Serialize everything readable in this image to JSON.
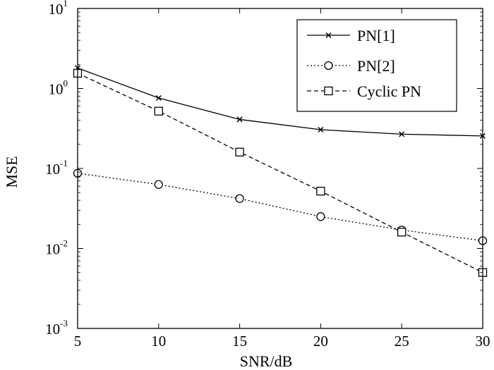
{
  "chart_data": {
    "type": "line",
    "x": [
      5,
      10,
      15,
      20,
      25,
      30
    ],
    "xlim": [
      5,
      30
    ],
    "ylim": [
      0.001,
      10
    ],
    "yscale": "log",
    "xlabel": "SNR/dB",
    "ylabel": "MSE",
    "xticks": [
      {
        "value": 5,
        "label": "5"
      },
      {
        "value": 10,
        "label": "10"
      },
      {
        "value": 15,
        "label": "15"
      },
      {
        "value": 20,
        "label": "20"
      },
      {
        "value": 25,
        "label": "25"
      },
      {
        "value": 30,
        "label": "30"
      }
    ],
    "yticks": [
      {
        "value": 10,
        "base": "10",
        "exp": "1"
      },
      {
        "value": 1,
        "base": "10",
        "exp": "0"
      },
      {
        "value": 0.1,
        "base": "10",
        "exp": "-1"
      },
      {
        "value": 0.01,
        "base": "10",
        "exp": "-2"
      },
      {
        "value": 0.001,
        "base": "10",
        "exp": "-3"
      }
    ],
    "legend_position": "top-right",
    "grid": false,
    "series": [
      {
        "name": "PN[1]",
        "marker": "x",
        "linestyle": "solid",
        "values": [
          1.8,
          0.76,
          0.41,
          0.305,
          0.268,
          0.255
        ]
      },
      {
        "name": "PN[2]",
        "marker": "circle",
        "linestyle": "dotted",
        "values": [
          0.087,
          0.063,
          0.042,
          0.025,
          0.017,
          0.0125
        ]
      },
      {
        "name": "Cyclic PN",
        "marker": "square",
        "linestyle": "dashed",
        "values": [
          1.55,
          0.52,
          0.16,
          0.052,
          0.016,
          0.005
        ]
      }
    ]
  }
}
